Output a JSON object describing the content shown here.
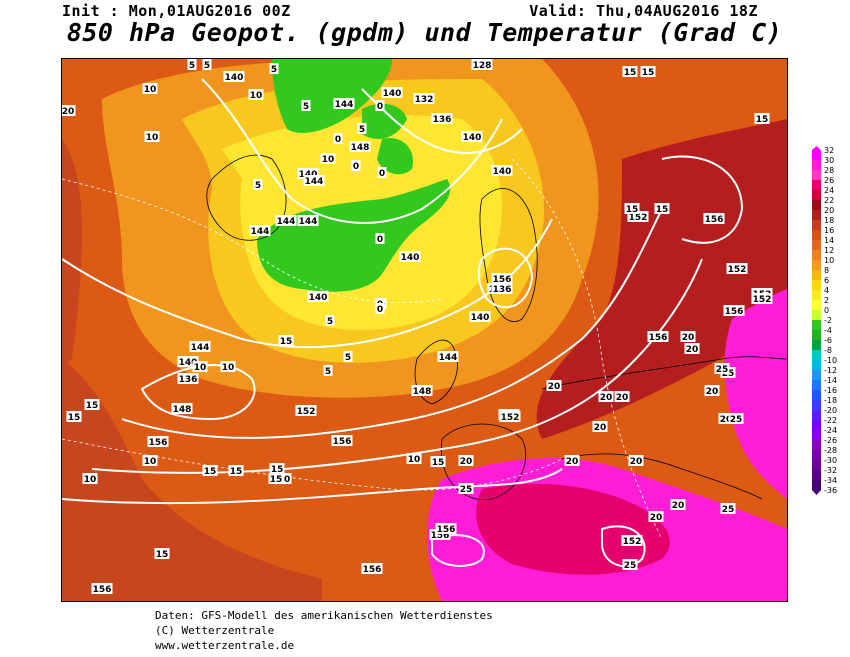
{
  "header": {
    "init": "Init : Mon,01AUG2016 00Z",
    "valid": "Valid: Thu,04AUG2016 18Z",
    "title": "850 hPa Geopot. (gpdm) und Temperatur (Grad C)"
  },
  "colorbar": {
    "ticks": [
      "32",
      "30",
      "28",
      "26",
      "24",
      "22",
      "20",
      "18",
      "16",
      "14",
      "12",
      "10",
      "8",
      "6",
      "4",
      "2",
      "0",
      "-2",
      "-4",
      "-6",
      "-8",
      "-10",
      "-12",
      "-14",
      "-16",
      "-18",
      "-20",
      "-22",
      "-24",
      "-26",
      "-28",
      "-30",
      "-32",
      "-34",
      "-36"
    ],
    "colors": [
      "#ff00ff",
      "#ff1ed6",
      "#ff3cc0",
      "#e6006e",
      "#c8003c",
      "#a00a14",
      "#b41e1e",
      "#c83c1e",
      "#dc5014",
      "#e6641e",
      "#f0801e",
      "#f59a1e",
      "#f8b41e",
      "#ffd21e",
      "#ffe632",
      "#ffff3c",
      "#c8ff3c",
      "#32c81e",
      "#1eb41e",
      "#00a03c",
      "#00c8c8",
      "#00b4e6",
      "#1e96ff",
      "#1e78ff",
      "#1e5aff",
      "#3c3cff",
      "#5a1eff",
      "#7800ff",
      "#8c00e6",
      "#8c00c8",
      "#7800b4",
      "#6e00a0",
      "#5a008c",
      "#460078"
    ]
  },
  "map": {
    "geopotential_labels": [
      "140",
      "128",
      "132",
      "136",
      "140",
      "144",
      "148",
      "140",
      "144",
      "144",
      "144",
      "140",
      "140",
      "136",
      "140",
      "144",
      "140",
      "136",
      "140",
      "144",
      "148",
      "152",
      "152",
      "156",
      "156",
      "156",
      "156",
      "156",
      "156",
      "152",
      "156",
      "152",
      "152",
      "152",
      "152",
      "148",
      "156",
      "156",
      "152",
      "156",
      "140",
      "144",
      "136"
    ],
    "temperature_labels": [
      "5",
      "5",
      "10",
      "5",
      "20",
      "10",
      "10",
      "5",
      "5",
      "0",
      "10",
      "0",
      "5",
      "0",
      "0",
      "0",
      "0",
      "5",
      "0",
      "0",
      "5",
      "5",
      "10",
      "10",
      "10",
      "10",
      "15",
      "15",
      "15",
      "15",
      "15",
      "15",
      "15",
      "15",
      "15",
      "15",
      "15",
      "20",
      "20",
      "20",
      "20",
      "20",
      "20",
      "20",
      "20",
      "20",
      "20",
      "20",
      "20",
      "25",
      "25",
      "25",
      "25",
      "25",
      "25",
      "15",
      "15",
      "10",
      "10",
      "20",
      "15"
    ]
  },
  "footer": {
    "line1": "Daten: GFS-Modell des amerikanischen Wetterdienstes",
    "line2": "(C) Wetterzentrale",
    "line3": "www.wetterzentrale.de"
  }
}
